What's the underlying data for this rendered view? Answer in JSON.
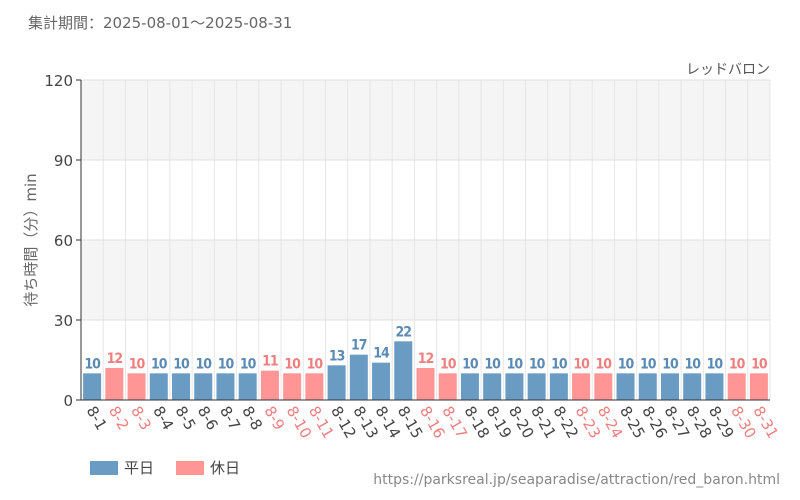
{
  "header": {
    "period": "集計期間：2025-08-01～2025-08-31"
  },
  "chart_data": {
    "type": "bar",
    "title": "",
    "ylabel": "待ち時間（分）min",
    "xlabel": "",
    "series_label": "レッドバロン",
    "ylim": [
      0,
      120
    ],
    "yticks": [
      0,
      30,
      60,
      90,
      120
    ],
    "grid": true,
    "legend_position": "bottom-left",
    "categories": [
      "8-1",
      "8-2",
      "8-3",
      "8-4",
      "8-5",
      "8-6",
      "8-7",
      "8-8",
      "8-9",
      "8-10",
      "8-11",
      "8-12",
      "8-13",
      "8-14",
      "8-15",
      "8-16",
      "8-17",
      "8-18",
      "8-19",
      "8-20",
      "8-21",
      "8-22",
      "8-23",
      "8-24",
      "8-25",
      "8-26",
      "8-27",
      "8-28",
      "8-29",
      "8-30",
      "8-31"
    ],
    "values": [
      10,
      12,
      10,
      10,
      10,
      10,
      10,
      10,
      11,
      10,
      10,
      13,
      17,
      14,
      22,
      12,
      10,
      10,
      10,
      10,
      10,
      10,
      10,
      10,
      10,
      10,
      10,
      10,
      10,
      10,
      10
    ],
    "day_type": [
      "weekday",
      "holiday",
      "holiday",
      "weekday",
      "weekday",
      "weekday",
      "weekday",
      "weekday",
      "holiday",
      "holiday",
      "holiday",
      "weekday",
      "weekday",
      "weekday",
      "weekday",
      "holiday",
      "holiday",
      "weekday",
      "weekday",
      "weekday",
      "weekday",
      "weekday",
      "holiday",
      "holiday",
      "weekday",
      "weekday",
      "weekday",
      "weekday",
      "weekday",
      "holiday",
      "holiday"
    ],
    "legend": [
      {
        "key": "weekday",
        "label": "平日",
        "color": "#6a9bc3"
      },
      {
        "key": "holiday",
        "label": "休日",
        "color": "#ff9595"
      }
    ],
    "label_colors": {
      "weekday": "#5b8bb5",
      "holiday": "#ee7f7f"
    }
  },
  "footer": {
    "source": "https://parksreal.jp/seaparadise/attraction/red_baron.html"
  }
}
